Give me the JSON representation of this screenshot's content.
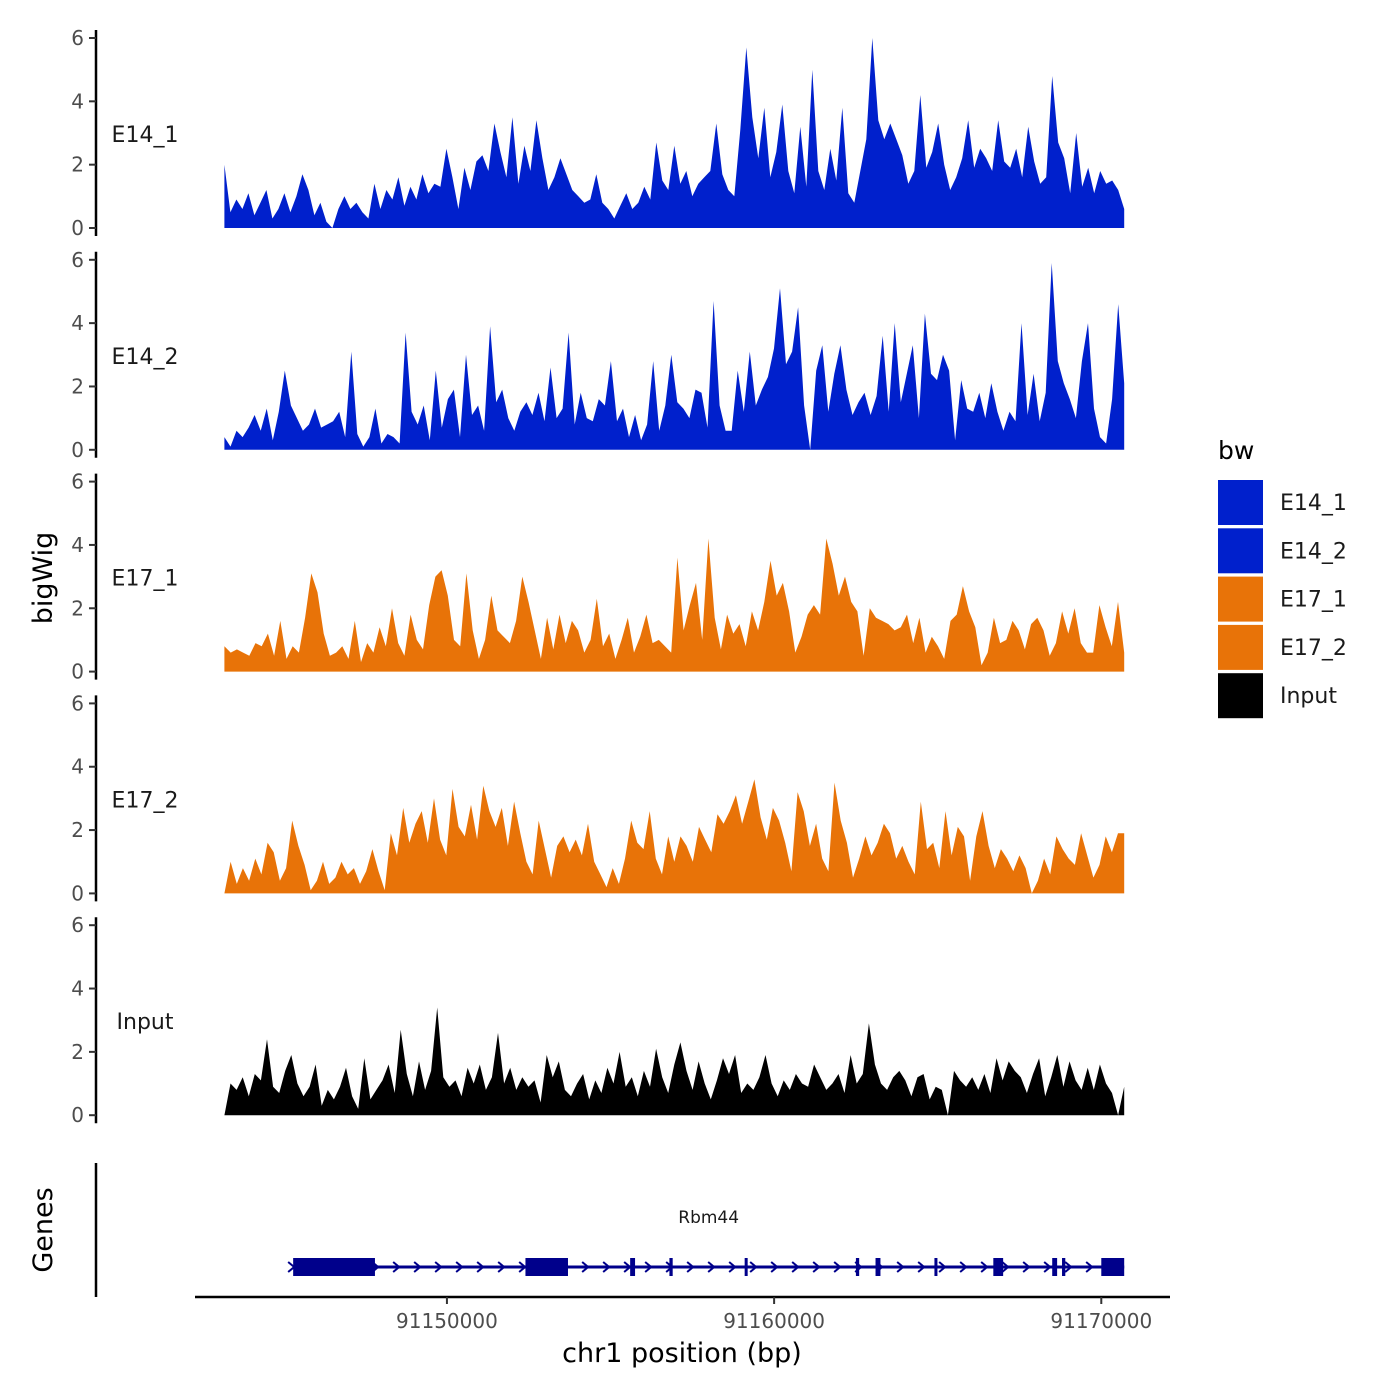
{
  "chart_data": {
    "type": "area",
    "chromosome": "chr1",
    "xlabel": "chr1 position (bp)",
    "ylabel": "bigWig",
    "genes_label": "Genes",
    "xlim": [
      91142300,
      91172100
    ],
    "data_range": [
      91143200,
      91170700
    ],
    "x_ticks": [
      91150000,
      91160000,
      91170000
    ],
    "x_tick_labels": [
      "91150000",
      "91160000",
      "91170000"
    ],
    "ylim": [
      0,
      6
    ],
    "y_ticks": [
      0,
      2,
      4,
      6
    ],
    "y_tick_labels": [
      "0",
      "2",
      "4",
      "6"
    ],
    "legend": {
      "title": "bw",
      "entries": [
        {
          "label": "E14_1",
          "color": "#0020CC"
        },
        {
          "label": "E14_2",
          "color": "#0020CC"
        },
        {
          "label": "E17_1",
          "color": "#E87308"
        },
        {
          "label": "E17_2",
          "color": "#E87308"
        },
        {
          "label": "Input",
          "color": "#000000"
        }
      ]
    },
    "series": [
      {
        "name": "E14_1",
        "color": "#0020CC",
        "values": [
          2.0,
          0.5,
          0.9,
          0.6,
          1.1,
          0.4,
          0.8,
          1.2,
          0.3,
          0.6,
          1.1,
          0.5,
          1.0,
          1.7,
          1.2,
          0.4,
          0.8,
          0.2,
          0.0,
          0.6,
          1.0,
          0.6,
          0.8,
          0.5,
          0.3,
          1.4,
          0.6,
          1.2,
          0.9,
          1.6,
          0.7,
          1.3,
          0.9,
          1.7,
          1.1,
          1.4,
          1.3,
          2.5,
          1.6,
          0.6,
          1.9,
          1.2,
          2.1,
          2.3,
          1.8,
          3.3,
          2.4,
          1.6,
          3.5,
          1.4,
          2.6,
          1.8,
          3.4,
          2.2,
          1.2,
          1.6,
          2.2,
          1.7,
          1.2,
          1.0,
          0.8,
          0.9,
          1.7,
          0.8,
          0.6,
          0.3,
          0.7,
          1.1,
          0.6,
          0.8,
          1.3,
          0.9,
          2.7,
          1.5,
          1.2,
          2.6,
          1.4,
          1.8,
          1.0,
          1.4,
          1.6,
          1.8,
          3.3,
          1.7,
          1.2,
          1.0,
          3.1,
          5.7,
          3.5,
          2.2,
          3.8,
          1.6,
          2.4,
          3.9,
          1.8,
          1.1,
          3.2,
          1.3,
          5.0,
          1.8,
          1.2,
          2.5,
          1.5,
          3.8,
          1.1,
          0.8,
          1.8,
          2.8,
          6.0,
          3.4,
          2.8,
          3.3,
          2.8,
          2.3,
          1.4,
          1.8,
          4.2,
          1.9,
          2.4,
          3.3,
          2.0,
          1.2,
          1.6,
          2.2,
          3.4,
          1.9,
          2.5,
          2.2,
          1.8,
          3.4,
          2.1,
          1.9,
          2.5,
          1.6,
          3.2,
          2.1,
          1.4,
          1.6,
          4.8,
          2.7,
          2.2,
          1.1,
          3.0,
          1.3,
          1.9,
          1.1,
          1.8,
          1.4,
          1.5,
          1.2,
          0.6
        ]
      },
      {
        "name": "E14_2",
        "color": "#0020CC",
        "values": [
          0.4,
          0.1,
          0.6,
          0.4,
          0.7,
          1.1,
          0.6,
          1.3,
          0.3,
          1.2,
          2.5,
          1.4,
          1.0,
          0.6,
          0.8,
          1.3,
          0.7,
          0.8,
          0.9,
          1.2,
          0.4,
          3.1,
          0.5,
          0.1,
          0.4,
          1.3,
          0.2,
          0.5,
          0.4,
          0.2,
          3.7,
          1.2,
          0.8,
          1.4,
          0.3,
          2.5,
          0.7,
          1.6,
          1.9,
          0.4,
          3.0,
          1.1,
          1.4,
          0.6,
          3.9,
          1.5,
          1.9,
          1.0,
          0.6,
          1.2,
          1.5,
          1.1,
          1.8,
          0.9,
          2.6,
          1.0,
          1.3,
          3.7,
          0.8,
          1.8,
          1.0,
          0.9,
          1.6,
          1.4,
          2.8,
          0.9,
          1.3,
          0.4,
          1.1,
          0.3,
          0.8,
          2.8,
          0.6,
          1.4,
          3.0,
          1.5,
          1.3,
          1.0,
          1.9,
          1.8,
          0.7,
          4.7,
          1.4,
          0.6,
          0.6,
          2.5,
          1.2,
          3.1,
          1.4,
          1.9,
          2.3,
          3.2,
          5.1,
          2.7,
          3.1,
          4.5,
          1.4,
          0.0,
          2.5,
          3.3,
          1.2,
          2.4,
          3.3,
          1.9,
          1.1,
          1.5,
          1.8,
          1.1,
          1.7,
          3.6,
          1.2,
          4.0,
          1.5,
          2.4,
          3.3,
          1.0,
          4.3,
          2.4,
          2.2,
          3.0,
          2.5,
          0.3,
          2.2,
          1.3,
          1.2,
          1.8,
          1.0,
          2.1,
          1.2,
          0.6,
          1.2,
          0.9,
          4.0,
          1.1,
          2.4,
          0.9,
          1.8,
          5.9,
          2.8,
          2.1,
          1.6,
          1.0,
          2.8,
          4.0,
          1.3,
          0.4,
          0.2,
          1.6,
          4.6,
          2.1
        ]
      },
      {
        "name": "E17_1",
        "color": "#E87308",
        "values": [
          0.8,
          0.6,
          0.7,
          0.6,
          0.5,
          0.9,
          0.8,
          1.2,
          0.5,
          1.6,
          0.4,
          0.8,
          0.6,
          1.7,
          3.1,
          2.5,
          1.2,
          0.5,
          0.6,
          0.8,
          0.4,
          1.6,
          0.3,
          0.9,
          0.6,
          1.4,
          0.8,
          2.0,
          0.9,
          0.5,
          1.8,
          1.0,
          0.7,
          2.1,
          3.0,
          3.2,
          2.4,
          1.0,
          0.8,
          3.1,
          1.3,
          0.4,
          1.0,
          2.4,
          1.3,
          1.1,
          0.9,
          1.6,
          3.0,
          2.2,
          1.3,
          0.4,
          1.7,
          0.7,
          1.8,
          0.9,
          1.6,
          1.3,
          0.6,
          1.0,
          2.3,
          0.8,
          1.2,
          0.4,
          1.0,
          1.7,
          0.6,
          1.1,
          1.8,
          0.9,
          1.0,
          0.8,
          0.6,
          3.6,
          1.3,
          2.1,
          2.8,
          1.0,
          4.2,
          1.7,
          0.7,
          1.8,
          1.2,
          1.5,
          0.8,
          1.9,
          1.3,
          2.2,
          3.5,
          2.4,
          2.8,
          1.9,
          0.6,
          1.1,
          1.8,
          2.1,
          1.8,
          4.2,
          3.4,
          2.4,
          3.0,
          2.2,
          1.9,
          0.5,
          2.0,
          1.7,
          1.6,
          1.5,
          1.3,
          1.4,
          1.8,
          0.9,
          1.7,
          0.6,
          1.1,
          0.8,
          0.4,
          1.6,
          1.8,
          2.7,
          1.9,
          1.4,
          0.2,
          0.6,
          1.7,
          0.9,
          1.0,
          1.6,
          1.3,
          0.7,
          1.5,
          1.7,
          1.3,
          0.5,
          0.9,
          1.9,
          1.2,
          2.0,
          0.9,
          0.6,
          0.6,
          2.1,
          1.4,
          0.8,
          2.2,
          0.6
        ]
      },
      {
        "name": "E17_2",
        "color": "#E87308",
        "values": [
          0.0,
          1.0,
          0.3,
          0.8,
          0.4,
          1.1,
          0.6,
          1.6,
          1.3,
          0.4,
          0.8,
          2.3,
          1.5,
          0.9,
          0.1,
          0.4,
          1.0,
          0.3,
          0.5,
          1.0,
          0.6,
          0.8,
          0.3,
          0.7,
          1.4,
          0.7,
          0.1,
          1.9,
          1.2,
          2.7,
          1.6,
          2.2,
          2.6,
          1.6,
          3.0,
          1.7,
          1.2,
          3.3,
          2.1,
          1.8,
          2.8,
          1.7,
          3.4,
          2.6,
          2.1,
          2.7,
          1.5,
          2.9,
          1.9,
          1.0,
          0.6,
          2.3,
          1.4,
          0.5,
          1.5,
          1.8,
          1.3,
          1.7,
          1.2,
          2.2,
          1.0,
          0.6,
          0.2,
          0.8,
          0.3,
          1.1,
          2.3,
          1.6,
          1.4,
          2.6,
          1.1,
          0.6,
          1.8,
          1.0,
          1.8,
          1.5,
          1.0,
          2.1,
          1.7,
          1.3,
          2.5,
          2.2,
          2.6,
          3.1,
          2.2,
          2.9,
          3.6,
          2.4,
          1.7,
          2.7,
          2.3,
          1.6,
          0.7,
          3.2,
          2.6,
          1.5,
          2.2,
          1.1,
          0.7,
          3.5,
          2.3,
          1.6,
          0.5,
          1.1,
          1.8,
          1.2,
          1.6,
          2.2,
          1.9,
          1.1,
          1.5,
          1.0,
          0.6,
          2.9,
          1.4,
          1.6,
          0.8,
          2.6,
          1.2,
          2.1,
          1.8,
          0.4,
          1.8,
          2.6,
          1.5,
          0.8,
          1.4,
          1.1,
          0.7,
          1.2,
          0.8,
          0.0,
          0.4,
          1.1,
          0.6,
          1.8,
          1.4,
          1.1,
          0.9,
          1.9,
          1.2,
          0.5,
          0.9,
          1.8,
          1.3,
          1.9,
          1.9
        ]
      },
      {
        "name": "Input",
        "color": "#000000",
        "values": [
          0.0,
          1.0,
          0.8,
          1.2,
          0.6,
          1.3,
          1.1,
          2.4,
          0.9,
          0.7,
          1.4,
          1.9,
          1.0,
          0.6,
          0.9,
          1.6,
          0.3,
          0.8,
          0.5,
          0.9,
          1.5,
          0.6,
          0.2,
          1.8,
          0.5,
          0.8,
          1.1,
          1.6,
          0.7,
          2.7,
          1.3,
          0.6,
          1.7,
          0.8,
          1.4,
          3.4,
          1.2,
          0.9,
          1.1,
          0.6,
          1.5,
          1.0,
          1.6,
          0.8,
          1.2,
          2.6,
          1.0,
          1.5,
          0.8,
          1.2,
          0.9,
          1.1,
          0.4,
          1.9,
          1.2,
          1.7,
          0.8,
          0.6,
          1.0,
          1.3,
          0.5,
          1.1,
          0.7,
          1.5,
          1.0,
          2.0,
          0.9,
          1.2,
          0.6,
          1.4,
          0.9,
          2.1,
          1.2,
          0.7,
          1.6,
          2.3,
          1.4,
          0.8,
          1.7,
          1.0,
          0.5,
          1.1,
          1.8,
          1.3,
          1.9,
          0.7,
          1.0,
          0.8,
          1.2,
          1.9,
          1.0,
          0.6,
          1.1,
          0.8,
          1.3,
          1.0,
          0.9,
          1.6,
          1.2,
          0.8,
          1.0,
          1.3,
          0.7,
          1.9,
          1.0,
          1.3,
          2.9,
          1.6,
          1.0,
          0.8,
          1.2,
          1.4,
          1.1,
          0.6,
          1.2,
          1.3,
          0.5,
          0.9,
          0.8,
          0.0,
          1.4,
          1.1,
          0.9,
          1.2,
          0.8,
          1.3,
          0.7,
          1.8,
          1.1,
          1.7,
          1.4,
          1.2,
          0.7,
          1.3,
          1.8,
          0.6,
          1.2,
          1.9,
          0.9,
          1.7,
          1.1,
          0.8,
          1.5,
          0.8,
          1.6,
          1.0,
          0.7,
          0.0,
          0.9
        ]
      }
    ],
    "gene_track": {
      "gene": "Rbm44",
      "color": "#00008B",
      "start": 91145300,
      "end": 91170700,
      "exons": [
        [
          91145300,
          91147800
        ],
        [
          91152400,
          91153700
        ],
        [
          91155600,
          91155750
        ],
        [
          91156800,
          91156900
        ],
        [
          91159100,
          91159150
        ],
        [
          91162500,
          91162600
        ],
        [
          91163100,
          91163250
        ],
        [
          91164900,
          91164950
        ],
        [
          91166700,
          91167000
        ],
        [
          91168500,
          91168650
        ],
        [
          91168800,
          91168900
        ],
        [
          91170000,
          91170700
        ]
      ]
    }
  }
}
